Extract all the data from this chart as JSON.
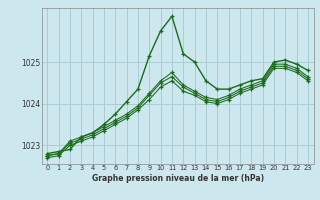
{
  "title": "Graphe pression niveau de la mer (hPa)",
  "background_color": "#cce8ee",
  "grid_color": "#aaccd4",
  "line_color": "#1a6b1a",
  "xlim": [
    -0.5,
    23.5
  ],
  "ylim": [
    1022.55,
    1026.3
  ],
  "yticks": [
    1023,
    1024,
    1025
  ],
  "xticks": [
    0,
    1,
    2,
    3,
    4,
    5,
    6,
    7,
    8,
    9,
    10,
    11,
    12,
    13,
    14,
    15,
    16,
    17,
    18,
    19,
    20,
    21,
    22,
    23
  ],
  "series": [
    [
      1022.8,
      1022.85,
      1022.9,
      1023.2,
      1023.3,
      1023.5,
      1023.75,
      1024.05,
      1024.35,
      1025.15,
      1025.75,
      1026.1,
      1025.2,
      1025.0,
      1024.55,
      1024.35,
      1024.35,
      1024.45,
      1024.55,
      1024.6,
      1025.0,
      1025.05,
      1024.95,
      1024.8
    ],
    [
      1022.75,
      1022.8,
      1023.1,
      1023.2,
      1023.3,
      1023.45,
      1023.6,
      1023.75,
      1023.95,
      1024.25,
      1024.55,
      1024.75,
      1024.45,
      1024.3,
      1024.15,
      1024.1,
      1024.2,
      1024.35,
      1024.45,
      1024.55,
      1024.95,
      1024.95,
      1024.85,
      1024.65
    ],
    [
      1022.75,
      1022.8,
      1023.05,
      1023.15,
      1023.25,
      1023.4,
      1023.55,
      1023.7,
      1023.9,
      1024.2,
      1024.5,
      1024.65,
      1024.4,
      1024.25,
      1024.1,
      1024.05,
      1024.15,
      1024.3,
      1024.4,
      1024.5,
      1024.9,
      1024.9,
      1024.8,
      1024.6
    ],
    [
      1022.7,
      1022.75,
      1023.0,
      1023.1,
      1023.2,
      1023.35,
      1023.5,
      1023.65,
      1023.85,
      1024.1,
      1024.4,
      1024.55,
      1024.3,
      1024.2,
      1024.05,
      1024.0,
      1024.1,
      1024.25,
      1024.35,
      1024.45,
      1024.85,
      1024.85,
      1024.75,
      1024.55
    ]
  ]
}
